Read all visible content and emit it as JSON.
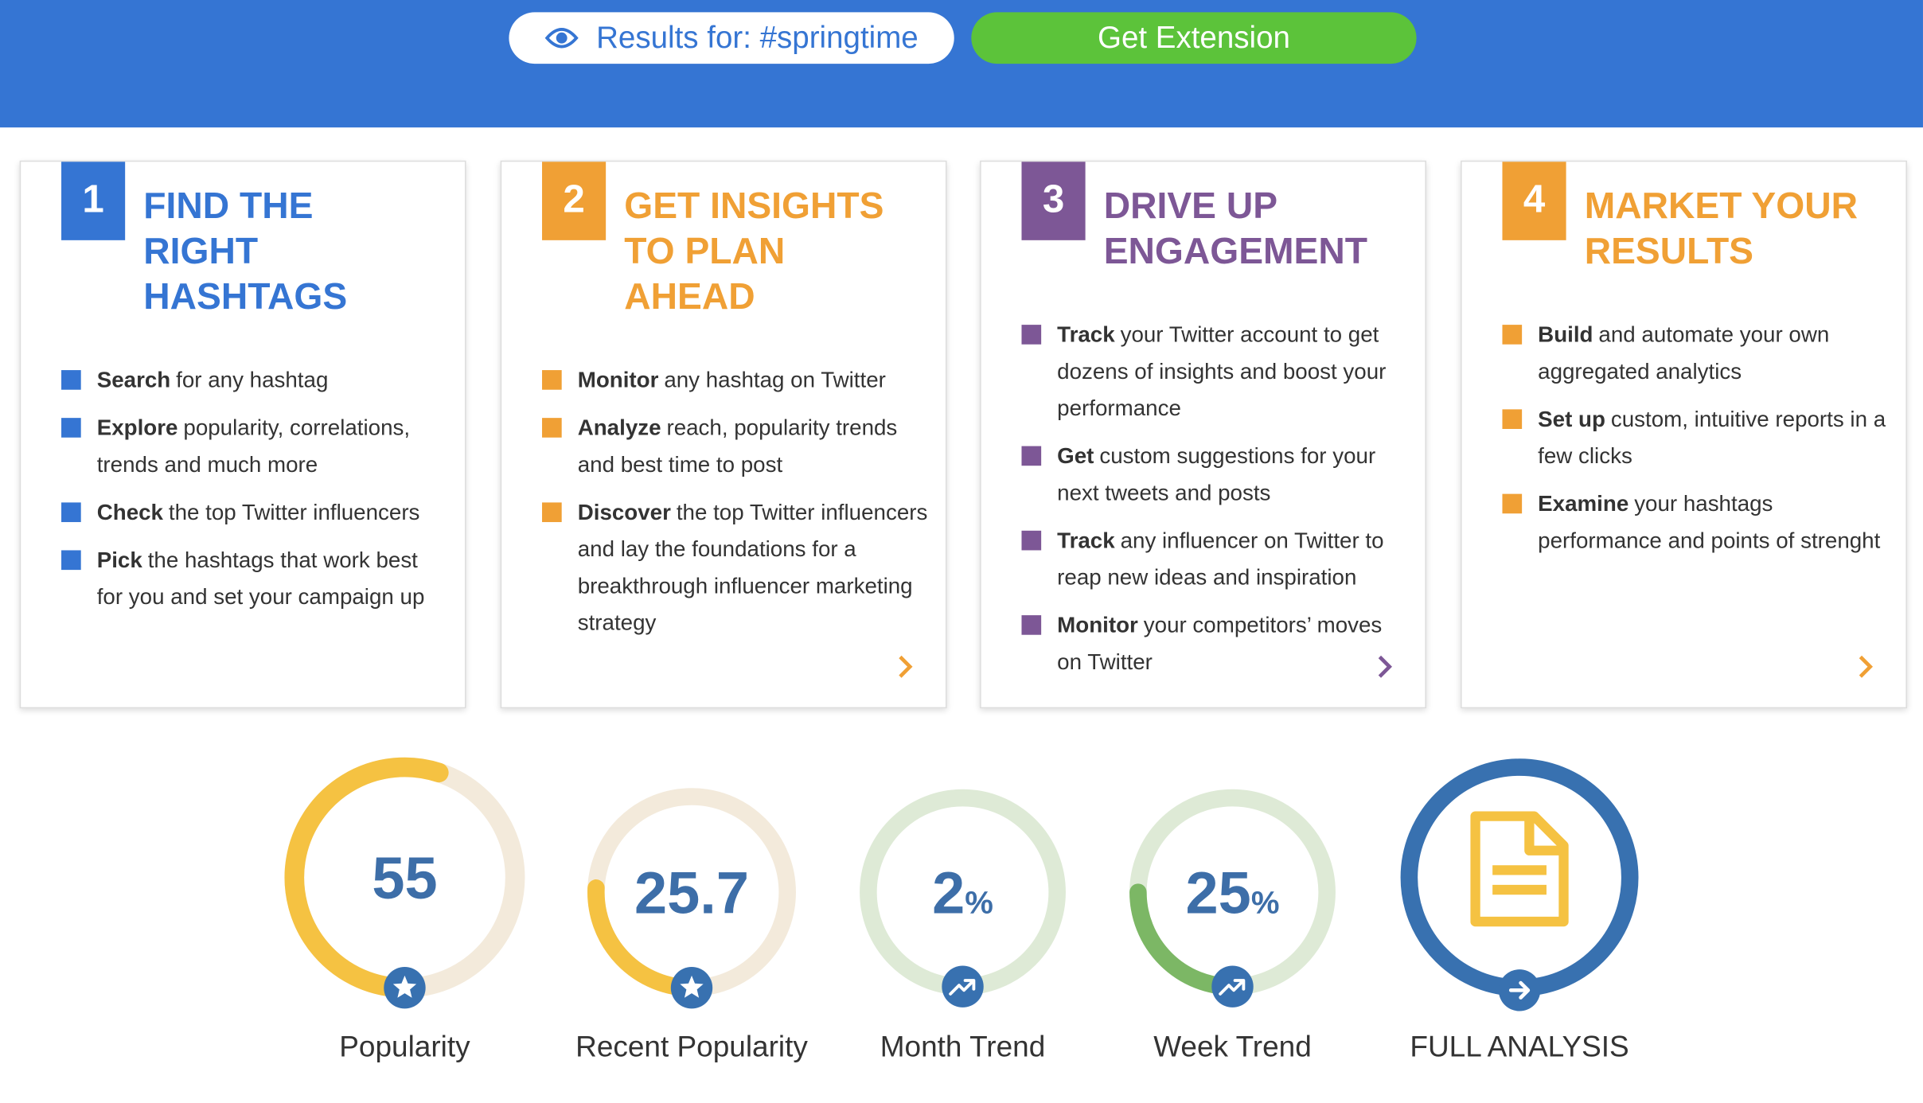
{
  "header": {
    "search_label": "Results for: #springtime",
    "button": "Get Extension"
  },
  "cards": [
    {
      "number": "1",
      "title": "FIND THE RIGHT HASHTAGS",
      "color": "#3575d3",
      "items": [
        {
          "bold": "Search",
          "text": "for any hashtag"
        },
        {
          "bold": "Explore",
          "text": "popularity, correlations, trends and much more"
        },
        {
          "bold": "Check",
          "text": "the top Twitter influencers"
        },
        {
          "bold": "Pick",
          "text": "the hashtags that work best for you and set your campaign up"
        }
      ]
    },
    {
      "number": "2",
      "title": "GET INSIGHTS TO PLAN AHEAD",
      "color": "#f0a035",
      "items": [
        {
          "bold": "Monitor",
          "text": "any hashtag on Twitter"
        },
        {
          "bold": "Analyze",
          "text": "reach, popularity trends and best time to post"
        },
        {
          "bold": "Discover",
          "text": "the top Twitter influencers and lay the foundations for a breakthrough influencer marketing strategy"
        }
      ]
    },
    {
      "number": "3",
      "title": "DRIVE UP ENGAGEMENT",
      "color": "#7d5796",
      "items": [
        {
          "bold": "Track",
          "text": "your Twitter account to get dozens of insights and boost your performance"
        },
        {
          "bold": "Get",
          "text": "custom suggestions for your next tweets and posts"
        },
        {
          "bold": "Track",
          "text": "any influencer on Twitter to reap new ideas and inspiration"
        },
        {
          "bold": "Monitor",
          "text": "your competitors’ moves on Twitter"
        }
      ]
    },
    {
      "number": "4",
      "title": "MARKET YOUR RESULTS",
      "color": "#f0a035",
      "items": [
        {
          "bold": "Build",
          "text": "and automate your own aggregated analytics"
        },
        {
          "bold": "Set up",
          "text": "custom, intuitive reports in a few clicks"
        },
        {
          "bold": "Examine",
          "text": "your hashtags performance and points of strenght"
        }
      ]
    }
  ],
  "metrics": [
    {
      "value": 55,
      "label": "Popularity",
      "color": "#f5c242",
      "track": "#f3eadb",
      "icon": "star"
    },
    {
      "value": 25.7,
      "label": "Recent Popularity",
      "color": "#f5c242",
      "track": "#f3eadb",
      "icon": "star"
    },
    {
      "value": 2,
      "unit": "%",
      "label": "Month Trend",
      "color": "#7cb765",
      "track": "#deead6",
      "icon": "trend"
    },
    {
      "value": 25,
      "unit": "%",
      "label": "Week Trend",
      "color": "#7cb765",
      "track": "#deead6",
      "icon": "trend"
    }
  ],
  "full_analysis": {
    "label": "FULL ANALYSIS"
  }
}
